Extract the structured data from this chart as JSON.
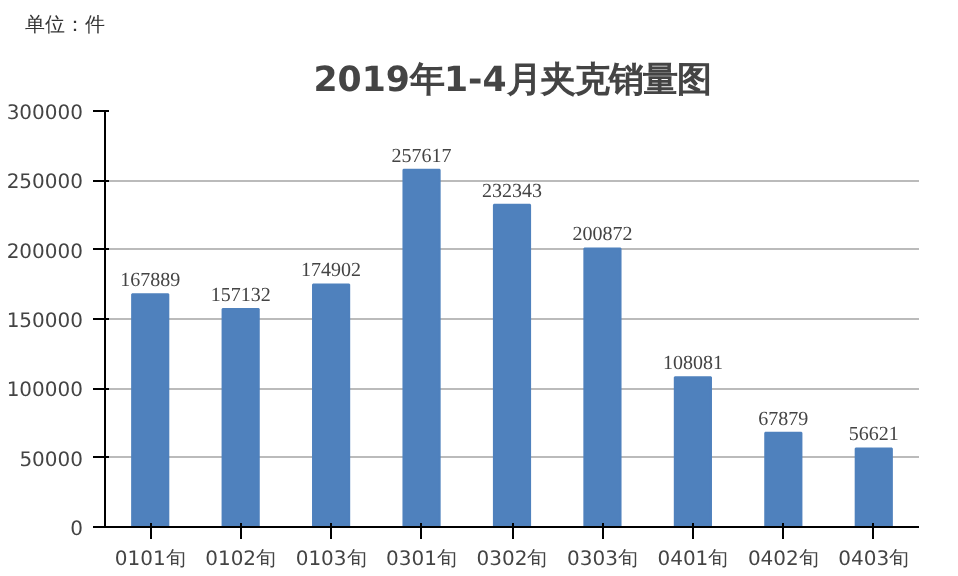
{
  "chart_data": {
    "type": "bar",
    "title": "2019年1-4月夹克销量图",
    "annotations": [
      "单位：件"
    ],
    "categories": [
      "0101旬",
      "0102旬",
      "0103旬",
      "0301旬",
      "0302旬",
      "0303旬",
      "0401旬",
      "0402旬",
      "0403旬"
    ],
    "values": [
      167889,
      157132,
      174902,
      257617,
      232343,
      200872,
      108081,
      67879,
      56621
    ],
    "color": "#4f81bd",
    "ylim": [
      0,
      300000
    ],
    "yticks": [
      0,
      50000,
      100000,
      150000,
      200000,
      250000,
      300000
    ],
    "grid": "y",
    "data_labels": true
  }
}
